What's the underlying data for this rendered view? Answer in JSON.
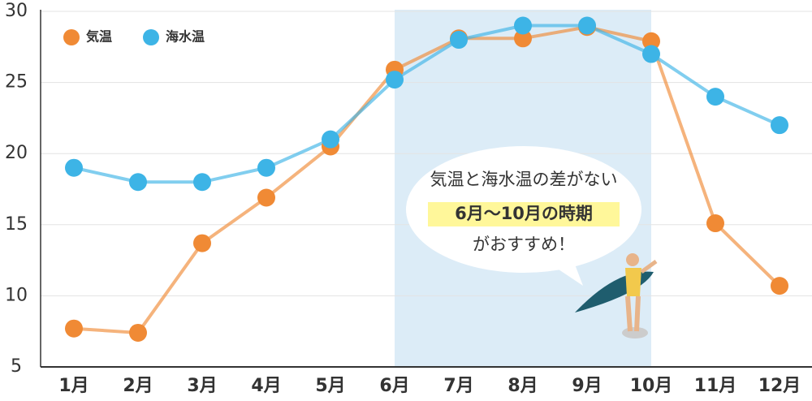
{
  "chart_data": {
    "type": "line",
    "categories": [
      "1月",
      "2月",
      "3月",
      "4月",
      "5月",
      "6月",
      "7月",
      "8月",
      "9月",
      "10月",
      "11月",
      "12月"
    ],
    "series": [
      {
        "name": "気温",
        "color": "#f08a35",
        "values": [
          7.7,
          7.4,
          13.7,
          16.9,
          20.5,
          25.9,
          28.1,
          28.1,
          28.9,
          27.9,
          15.1,
          10.7
        ]
      },
      {
        "name": "海水温",
        "color": "#3db4e6",
        "values": [
          19,
          18,
          18,
          19,
          21,
          25.2,
          28,
          29,
          29,
          27,
          24,
          22
        ]
      }
    ],
    "ylim": [
      5,
      30
    ],
    "yticks": [
      5,
      10,
      15,
      20,
      25,
      30
    ],
    "grid": true,
    "annotation": {
      "line1": "気温と海水温の差がない",
      "line2": "6月〜10月の時期",
      "line3": "がおすすめ！"
    }
  }
}
